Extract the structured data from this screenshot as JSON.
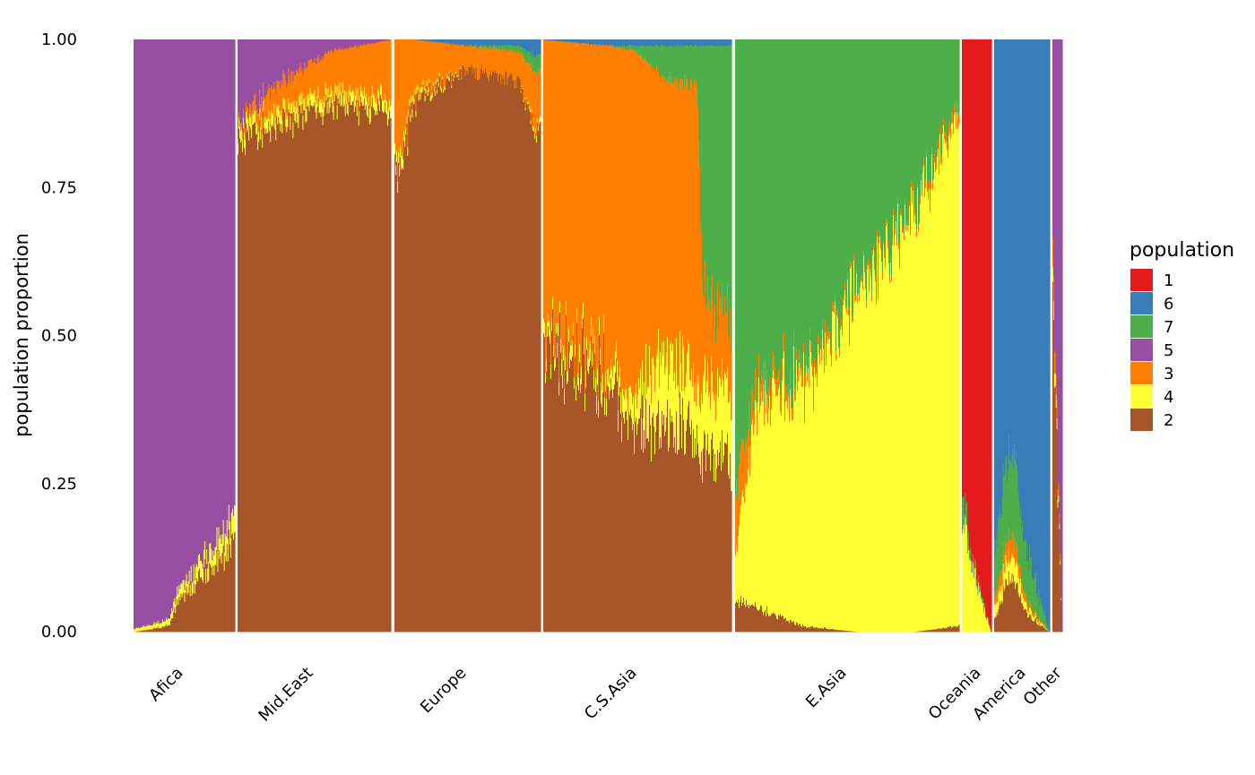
{
  "chart_data": {
    "type": "bar",
    "subtype": "stacked-admixture",
    "ylabel": "population proportion",
    "ylim": [
      0,
      1
    ],
    "y_ticks": [
      "0.00",
      "0.25",
      "0.50",
      "0.75",
      "1.00"
    ],
    "grid": false,
    "legend": {
      "title": "population",
      "placement": "right",
      "items": [
        {
          "key": "1",
          "color": "#E41A1C"
        },
        {
          "key": "6",
          "color": "#377EB8"
        },
        {
          "key": "7",
          "color": "#4DAF4A"
        },
        {
          "key": "5",
          "color": "#984EA3"
        },
        {
          "key": "3",
          "color": "#FF7F00"
        },
        {
          "key": "4",
          "color": "#FFFF33"
        },
        {
          "key": "2",
          "color": "#A65628"
        }
      ]
    },
    "stack_order_bottom_to_top": [
      "2",
      "4",
      "3",
      "5",
      "7",
      "6",
      "1"
    ],
    "panels": [
      {
        "label": "Afica",
        "n_samples": 110,
        "profile": [
          {
            "at": 0.0,
            "2": 0.0,
            "4": 0.005,
            "3": 0.0,
            "5": 0.995,
            "7": 0.0,
            "6": 0.0,
            "1": 0.0
          },
          {
            "at": 0.35,
            "2": 0.01,
            "4": 0.01,
            "3": 0.0,
            "5": 0.98,
            "7": 0.0,
            "6": 0.0,
            "1": 0.0
          },
          {
            "at": 0.45,
            "2": 0.06,
            "4": 0.02,
            "3": 0.0,
            "5": 0.92,
            "7": 0.0,
            "6": 0.0,
            "1": 0.0
          },
          {
            "at": 0.75,
            "2": 0.1,
            "4": 0.03,
            "3": 0.0,
            "5": 0.87,
            "7": 0.0,
            "6": 0.0,
            "1": 0.0
          },
          {
            "at": 1.0,
            "2": 0.15,
            "4": 0.04,
            "3": 0.0,
            "5": 0.81,
            "7": 0.0,
            "6": 0.0,
            "1": 0.0
          }
        ]
      },
      {
        "label": "Mid.East",
        "n_samples": 170,
        "profile": [
          {
            "at": 0.0,
            "2": 0.83,
            "4": 0.02,
            "3": 0.01,
            "5": 0.14,
            "7": 0.0,
            "6": 0.0,
            "1": 0.0
          },
          {
            "at": 0.2,
            "2": 0.86,
            "4": 0.02,
            "3": 0.04,
            "5": 0.08,
            "7": 0.0,
            "6": 0.0,
            "1": 0.0
          },
          {
            "at": 0.6,
            "2": 0.89,
            "4": 0.02,
            "3": 0.07,
            "5": 0.02,
            "7": 0.0,
            "6": 0.0,
            "1": 0.0
          },
          {
            "at": 1.0,
            "2": 0.88,
            "4": 0.02,
            "3": 0.1,
            "5": 0.0,
            "7": 0.0,
            "6": 0.0,
            "1": 0.0
          }
        ]
      },
      {
        "label": "Europe",
        "n_samples": 160,
        "profile": [
          {
            "at": 0.0,
            "2": 0.76,
            "4": 0.02,
            "3": 0.22,
            "5": 0.0,
            "7": 0.0,
            "6": 0.0,
            "1": 0.0
          },
          {
            "at": 0.15,
            "2": 0.9,
            "4": 0.01,
            "3": 0.09,
            "5": 0.0,
            "7": 0.0,
            "6": 0.0,
            "1": 0.0
          },
          {
            "at": 0.5,
            "2": 0.95,
            "4": 0.0,
            "3": 0.04,
            "5": 0.0,
            "7": 0.0,
            "6": 0.01,
            "1": 0.0
          },
          {
            "at": 0.85,
            "2": 0.93,
            "4": 0.0,
            "3": 0.05,
            "5": 0.0,
            "7": 0.01,
            "6": 0.01,
            "1": 0.0
          },
          {
            "at": 1.0,
            "2": 0.83,
            "4": 0.01,
            "3": 0.1,
            "5": 0.0,
            "7": 0.03,
            "6": 0.03,
            "1": 0.0
          }
        ]
      },
      {
        "label": "C.S.Asia",
        "n_samples": 210,
        "profile": [
          {
            "at": 0.0,
            "2": 0.49,
            "4": 0.02,
            "3": 0.49,
            "5": 0.0,
            "7": 0.0,
            "6": 0.0,
            "1": 0.0
          },
          {
            "at": 0.35,
            "2": 0.42,
            "4": 0.03,
            "3": 0.54,
            "5": 0.0,
            "7": 0.0,
            "6": 0.01,
            "1": 0.0
          },
          {
            "at": 0.5,
            "2": 0.32,
            "4": 0.05,
            "3": 0.61,
            "5": 0.0,
            "7": 0.01,
            "6": 0.01,
            "1": 0.0
          },
          {
            "at": 0.62,
            "2": 0.36,
            "4": 0.12,
            "3": 0.46,
            "5": 0.0,
            "7": 0.05,
            "6": 0.01,
            "1": 0.0
          },
          {
            "at": 0.82,
            "2": 0.32,
            "4": 0.1,
            "3": 0.5,
            "5": 0.0,
            "7": 0.07,
            "6": 0.01,
            "1": 0.0
          },
          {
            "at": 0.85,
            "2": 0.3,
            "4": 0.12,
            "3": 0.15,
            "5": 0.0,
            "7": 0.42,
            "6": 0.01,
            "1": 0.0
          },
          {
            "at": 1.0,
            "2": 0.28,
            "4": 0.12,
            "3": 0.12,
            "5": 0.0,
            "7": 0.47,
            "6": 0.01,
            "1": 0.0
          }
        ]
      },
      {
        "label": "E.Asia",
        "n_samples": 250,
        "profile": [
          {
            "at": 0.0,
            "2": 0.05,
            "4": 0.08,
            "3": 0.1,
            "5": 0.0,
            "7": 0.77,
            "6": 0.0,
            "1": 0.0
          },
          {
            "at": 0.1,
            "2": 0.04,
            "4": 0.35,
            "3": 0.04,
            "5": 0.0,
            "7": 0.57,
            "6": 0.0,
            "1": 0.0
          },
          {
            "at": 0.3,
            "2": 0.01,
            "4": 0.4,
            "3": 0.02,
            "5": 0.0,
            "7": 0.57,
            "6": 0.0,
            "1": 0.0
          },
          {
            "at": 0.55,
            "2": 0.0,
            "4": 0.58,
            "3": 0.01,
            "5": 0.0,
            "7": 0.41,
            "6": 0.0,
            "1": 0.0
          },
          {
            "at": 0.8,
            "2": 0.0,
            "4": 0.7,
            "3": 0.01,
            "5": 0.0,
            "7": 0.29,
            "6": 0.0,
            "1": 0.0
          },
          {
            "at": 1.0,
            "2": 0.01,
            "4": 0.86,
            "3": 0.02,
            "5": 0.0,
            "7": 0.11,
            "6": 0.0,
            "1": 0.0
          }
        ]
      },
      {
        "label": "Oceania",
        "n_samples": 38,
        "profile": [
          {
            "at": 0.0,
            "2": 0.0,
            "4": 0.18,
            "3": 0.0,
            "5": 0.0,
            "7": 0.05,
            "6": 0.0,
            "1": 0.77
          },
          {
            "at": 0.3,
            "2": 0.0,
            "4": 0.12,
            "3": 0.0,
            "5": 0.0,
            "7": 0.02,
            "6": 0.0,
            "1": 0.86
          },
          {
            "at": 1.0,
            "2": 0.0,
            "4": 0.0,
            "3": 0.0,
            "5": 0.0,
            "7": 0.0,
            "6": 0.0,
            "1": 1.0
          }
        ]
      },
      {
        "label": "America",
        "n_samples": 70,
        "profile": [
          {
            "at": 0.0,
            "2": 0.02,
            "4": 0.02,
            "3": 0.02,
            "5": 0.0,
            "7": 0.08,
            "6": 0.86,
            "1": 0.0
          },
          {
            "at": 0.3,
            "2": 0.1,
            "4": 0.04,
            "3": 0.04,
            "5": 0.0,
            "7": 0.15,
            "6": 0.67,
            "1": 0.0
          },
          {
            "at": 0.6,
            "2": 0.03,
            "4": 0.01,
            "3": 0.01,
            "5": 0.0,
            "7": 0.08,
            "6": 0.87,
            "1": 0.0
          },
          {
            "at": 1.0,
            "2": 0.0,
            "4": 0.0,
            "3": 0.0,
            "5": 0.0,
            "7": 0.0,
            "6": 1.0,
            "1": 0.0
          }
        ]
      },
      {
        "label": "Other",
        "n_samples": 12,
        "profile": [
          {
            "at": 0.0,
            "2": 0.57,
            "4": 0.03,
            "3": 0.05,
            "5": 0.35,
            "7": 0.0,
            "6": 0.0,
            "1": 0.0
          },
          {
            "at": 1.0,
            "2": 0.0,
            "4": 0.0,
            "3": 0.0,
            "5": 1.0,
            "7": 0.0,
            "6": 0.0,
            "1": 0.0
          }
        ]
      }
    ]
  }
}
